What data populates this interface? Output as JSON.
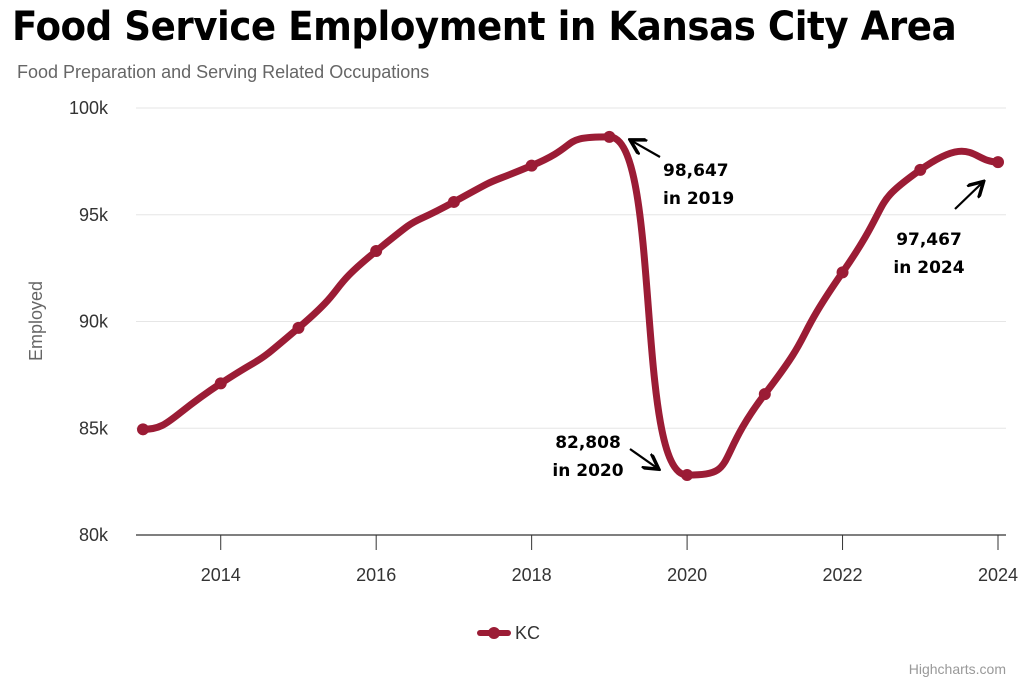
{
  "chart_data": {
    "type": "line",
    "title": "Food Service Employment in Kansas City Area",
    "subtitle": "Food Preparation and Serving Related Occupations",
    "xlabel": "",
    "ylabel": "Employed",
    "x": [
      2013,
      2014,
      2015,
      2016,
      2017,
      2018,
      2019,
      2020,
      2021,
      2022,
      2023,
      2024
    ],
    "series": [
      {
        "name": "KC",
        "color": "#9b1c35",
        "values": [
          84950,
          87100,
          89700,
          93300,
          95600,
          97300,
          98647,
          82808,
          86600,
          92300,
          97100,
          97467
        ]
      }
    ],
    "ylim": [
      80000,
      100000
    ],
    "xlim": [
      2013,
      2024
    ],
    "y_ticks": [
      80000,
      85000,
      90000,
      95000,
      100000
    ],
    "y_tick_labels": [
      "80k",
      "85k",
      "90k",
      "95k",
      "100k"
    ],
    "x_ticks": [
      2014,
      2016,
      2018,
      2020,
      2022,
      2024
    ],
    "x_tick_labels": [
      "2014",
      "2016",
      "2018",
      "2020",
      "2022",
      "2024"
    ],
    "grid": true,
    "legend": {
      "position": "bottom-center",
      "entries": [
        "KC"
      ]
    },
    "annotations": [
      {
        "x": 2019,
        "y": 98647,
        "line1": "98,647",
        "line2": "in 2019"
      },
      {
        "x": 2020,
        "y": 82808,
        "line1": "82,808",
        "line2": "in 2020"
      },
      {
        "x": 2024,
        "y": 97467,
        "line1": "97,467",
        "line2": "in 2024"
      }
    ],
    "credits": "Highcharts.com"
  }
}
